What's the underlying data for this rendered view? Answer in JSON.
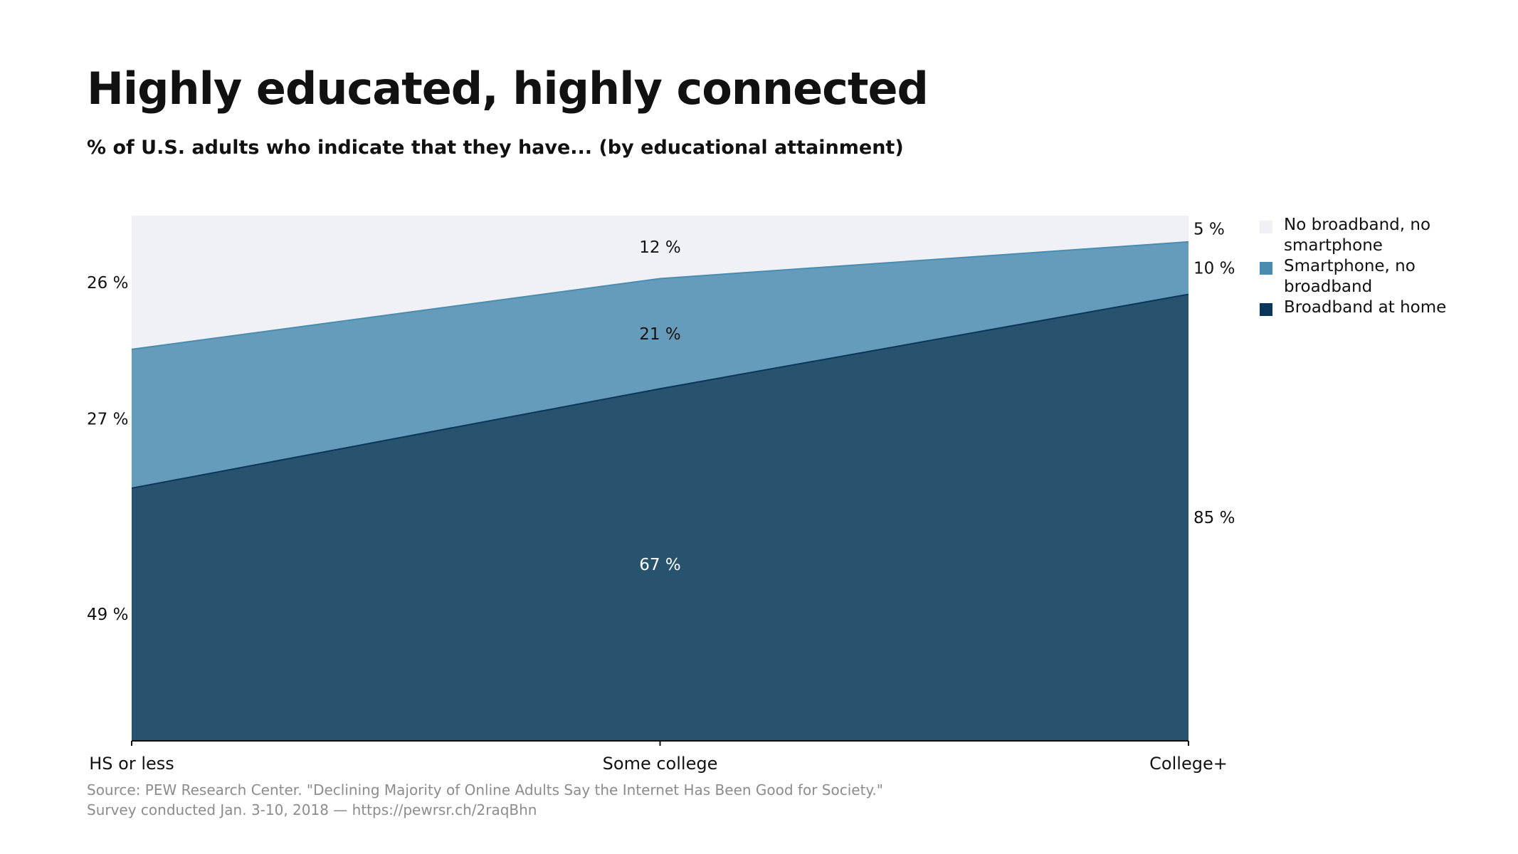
{
  "title": "Highly educated, highly connected",
  "subtitle": "% of U.S. adults who indicate that they have... (by educational attainment)",
  "source": {
    "line1": "Source: PEW Research Center. \"Declining Majority of Online Adults Say the Internet Has Been Good for Society.\"",
    "line2": "Survey conducted Jan. 3-10, 2018 — https://pewrsr.ch/2raqBhn"
  },
  "legend": [
    {
      "label": "No broadband, no smartphone",
      "color": "#f0f1f7"
    },
    {
      "label": "Smartphone, no broadband",
      "color": "#4a8cb0"
    },
    {
      "label": "Broadband at home",
      "color": "#0b365a"
    }
  ],
  "chart_data": {
    "type": "area",
    "stacked": true,
    "categories": [
      "HS or less",
      "Some college",
      "College+"
    ],
    "ylim": [
      0,
      100
    ],
    "series": [
      {
        "name": "Broadband at home",
        "values": [
          49,
          67,
          85
        ],
        "fill": "#27536f",
        "stroke": "#0b365a",
        "label_color": "#ffffff"
      },
      {
        "name": "Smartphone, no broadband",
        "values": [
          27,
          21,
          10
        ],
        "fill": "#669cbb",
        "stroke": "#4a8cb0",
        "label_color": "#111111"
      },
      {
        "name": "No broadband, no smartphone",
        "values": [
          26,
          12,
          5
        ],
        "fill": "#f0f1f7",
        "stroke": "#f0f1f7",
        "label_color": "#111111"
      }
    ],
    "value_labels": [
      {
        "series": 0,
        "category": 0,
        "text": "49 %"
      },
      {
        "series": 0,
        "category": 1,
        "text": "67 %"
      },
      {
        "series": 0,
        "category": 2,
        "text": "85 %"
      },
      {
        "series": 1,
        "category": 0,
        "text": "27 %"
      },
      {
        "series": 1,
        "category": 1,
        "text": "21 %"
      },
      {
        "series": 1,
        "category": 2,
        "text": "10 %"
      },
      {
        "series": 2,
        "category": 0,
        "text": "26 %"
      },
      {
        "series": 2,
        "category": 1,
        "text": "12 %"
      },
      {
        "series": 2,
        "category": 2,
        "text": "5 %"
      }
    ],
    "legend_position": "right"
  }
}
